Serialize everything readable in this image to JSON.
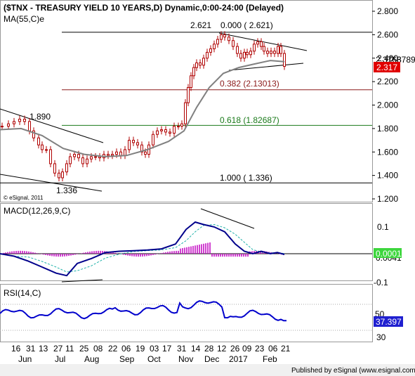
{
  "chart_data": [
    {
      "type": "candlestick",
      "title": "($TNX - TREASURY YIELD 10 YEARS,D) Dynamic,0:00-24:00 (Delayed)",
      "overlay_label": "MA(55,C)e",
      "watermark": "© eSignal, 2011",
      "ylim": [
        1.2,
        2.9
      ],
      "y_ticks": [
        "2.800",
        "2.600",
        "2.400",
        "2.200",
        "2.000",
        "1.800",
        "1.600",
        "1.400",
        "1.200"
      ],
      "last_price": "2.317",
      "ma_value": "2.37899",
      "ma_value_hidden": "2.3768",
      "annotations": {
        "high_label": "2.621",
        "low_label": "1.336",
        "prior_high_label": "1.890",
        "fib_0": "0.000 ( 2.621)",
        "fib_382": "0.382 (2.13013)",
        "fib_618": "0.618 (1.82687)",
        "fib_100": "1.000 ( 1.336)"
      },
      "fib_levels": [
        2.621,
        2.13013,
        1.82687,
        1.336
      ],
      "colors": {
        "fib_0": "#000000",
        "fib_382": "#8b1a1a",
        "fib_618": "#1a7a1a",
        "fib_100": "#000000",
        "candles": "#b00000",
        "ma": "#808080",
        "last_price_bg": "#e00000"
      }
    },
    {
      "type": "line",
      "title": "MACD(12,26,9,C)",
      "y_ticks": [
        "0.1",
        "-0.1"
      ],
      "ylim": [
        -0.13,
        0.17
      ],
      "last_value": "0.0001",
      "last_value_hidden": "0.0041",
      "colors": {
        "macd": "#00008b",
        "signal": "#20b2aa",
        "histogram": "#c000c0"
      }
    },
    {
      "type": "line",
      "title": "RSI(14,C)",
      "y_ticks": [
        "50",
        "30"
      ],
      "ylim": [
        0,
        100
      ],
      "last_value": "37.397",
      "colors": {
        "rsi": "#0000cc"
      }
    }
  ],
  "x_axis": {
    "days": [
      "16",
      "31",
      "13",
      "27",
      "11",
      "25",
      "08",
      "22",
      "06",
      "19",
      "03",
      "17",
      "31",
      "14",
      "28",
      "12",
      "26",
      "09",
      "23",
      "06",
      "21"
    ],
    "months": [
      "Jun",
      "Jul",
      "Aug",
      "Sep",
      "Oct",
      "Nov",
      "Dec",
      "2017",
      "Feb"
    ]
  },
  "footer": "Published by eSignal (www.esignal.com)"
}
